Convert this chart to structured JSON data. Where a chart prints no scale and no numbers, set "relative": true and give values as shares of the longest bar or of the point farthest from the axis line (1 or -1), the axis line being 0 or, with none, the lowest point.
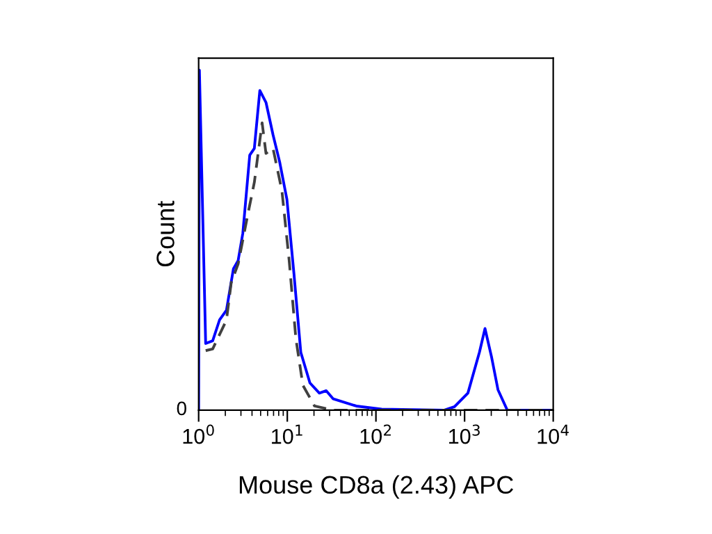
{
  "chart_data": {
    "type": "line",
    "xlabel": "Mouse CD8a (2.43) APC",
    "ylabel": "Count",
    "relative": true,
    "log": "x",
    "grid": false,
    "legend": false,
    "marker": "none",
    "xlim": [
      1,
      10000
    ],
    "xticks": [
      {
        "value": 1,
        "label": "10$^{0}$"
      },
      {
        "value": 10,
        "label": "10$^{1}$"
      },
      {
        "value": 100,
        "label": "10$^{2}$"
      },
      {
        "value": 1000,
        "label": "10$^{3}$"
      },
      {
        "value": 10000,
        "label": "10$^{4}$"
      }
    ],
    "annotations": [
      "0"
    ],
    "series": [
      {
        "color": "#404040",
        "line_style": "dashed",
        "x": [
          1.2,
          1.44,
          2.06,
          2.33,
          2.79,
          3.55,
          4.25,
          5.2,
          5.75,
          6.9,
          8.7,
          10.5,
          12.5,
          15,
          20.3,
          33,
          100,
          1000,
          10000
        ],
        "values": [
          0.175,
          0.18,
          0.265,
          0.375,
          0.43,
          0.57,
          0.67,
          0.845,
          0.755,
          0.77,
          0.645,
          0.44,
          0.21,
          0.073,
          0.012,
          0,
          0,
          0,
          0
        ]
      },
      {
        "color": "#0000ff",
        "line_style": "solid",
        "x": [
          1.0,
          1.02,
          1.2,
          1.44,
          1.72,
          2.06,
          2.47,
          2.79,
          3.15,
          3.77,
          4.25,
          4.9,
          5.75,
          6.9,
          8.2,
          9.9,
          11.9,
          14.2,
          18,
          23,
          27.5,
          33,
          60,
          116,
          590,
          770,
          1090,
          1470,
          1700,
          2020,
          2380,
          3030,
          10000
        ],
        "values": [
          0,
          1,
          0.196,
          0.204,
          0.265,
          0.294,
          0.416,
          0.44,
          0.52,
          0.75,
          0.77,
          0.94,
          0.905,
          0.81,
          0.73,
          0.62,
          0.4,
          0.17,
          0.08,
          0.05,
          0.057,
          0.033,
          0.012,
          0.003,
          0,
          0.01,
          0.05,
          0.17,
          0.24,
          0.155,
          0.06,
          0,
          0
        ]
      }
    ]
  }
}
